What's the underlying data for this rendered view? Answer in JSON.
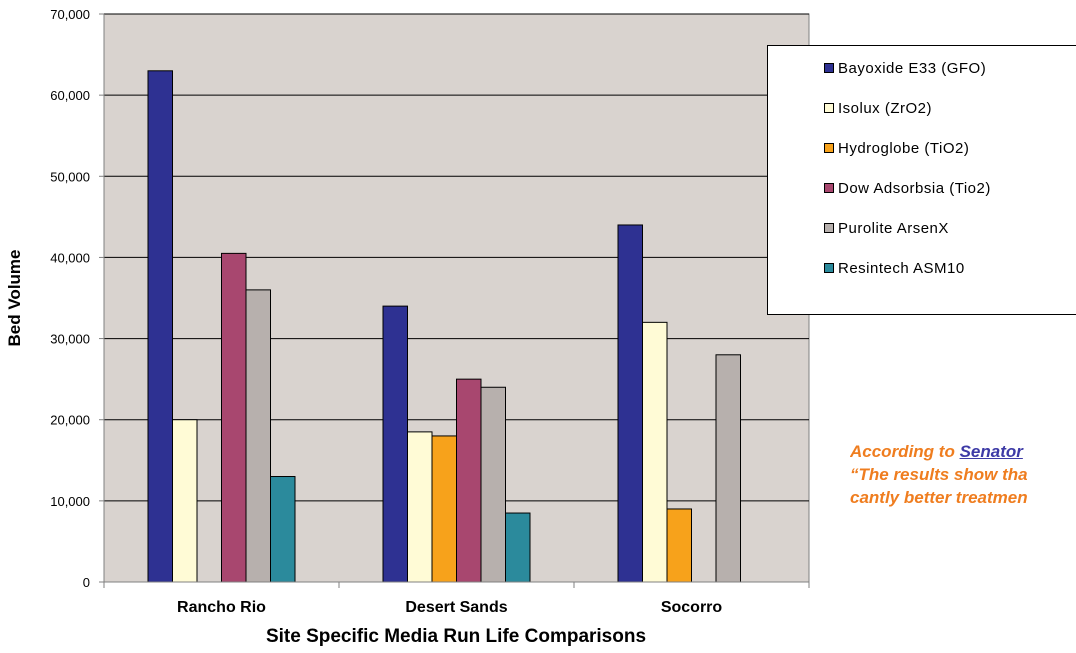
{
  "chart_data": {
    "type": "bar",
    "title": "",
    "xlabel": "Site Specific Media Run Life Comparisons",
    "ylabel": "Bed Volume",
    "ylim": [
      0,
      70000
    ],
    "yticks": [
      "0",
      "10,000",
      "20,000",
      "30,000",
      "40,000",
      "50,000",
      "60,000",
      "70,000"
    ],
    "grid": true,
    "legend_position": "right",
    "categories": [
      "Rancho Rio",
      "Desert Sands",
      "Socorro"
    ],
    "series": [
      {
        "name": "Bayoxide E33 (GFO)",
        "color": "#2e3192",
        "values": [
          63000,
          34000,
          44000
        ]
      },
      {
        "name": "Isolux (ZrO2)",
        "color": "#fffbd6",
        "values": [
          20000,
          18500,
          32000
        ]
      },
      {
        "name": "Hydroglobe (TiO2)",
        "color": "#f7a21b",
        "values": [
          null,
          18000,
          9000
        ]
      },
      {
        "name": "Dow Adsorbsia (Tio2)",
        "color": "#a8476f",
        "values": [
          40500,
          25000,
          null
        ]
      },
      {
        "name": "Purolite ArsenX",
        "color": "#b7b0ad",
        "values": [
          36000,
          24000,
          28000
        ]
      },
      {
        "name": "Resintech ASM10",
        "color": "#2b8a9c",
        "values": [
          13000,
          8500,
          null
        ]
      }
    ]
  },
  "annotation": {
    "line1_prefix": "According to ",
    "line1_link": "Senator",
    "line2": "“The results  show tha",
    "line3": "cantly better treatmen"
  },
  "colors": {
    "plot_background": "#d9d3cf",
    "annotation": "#ef7d1f",
    "link": "#3d3aa6"
  }
}
